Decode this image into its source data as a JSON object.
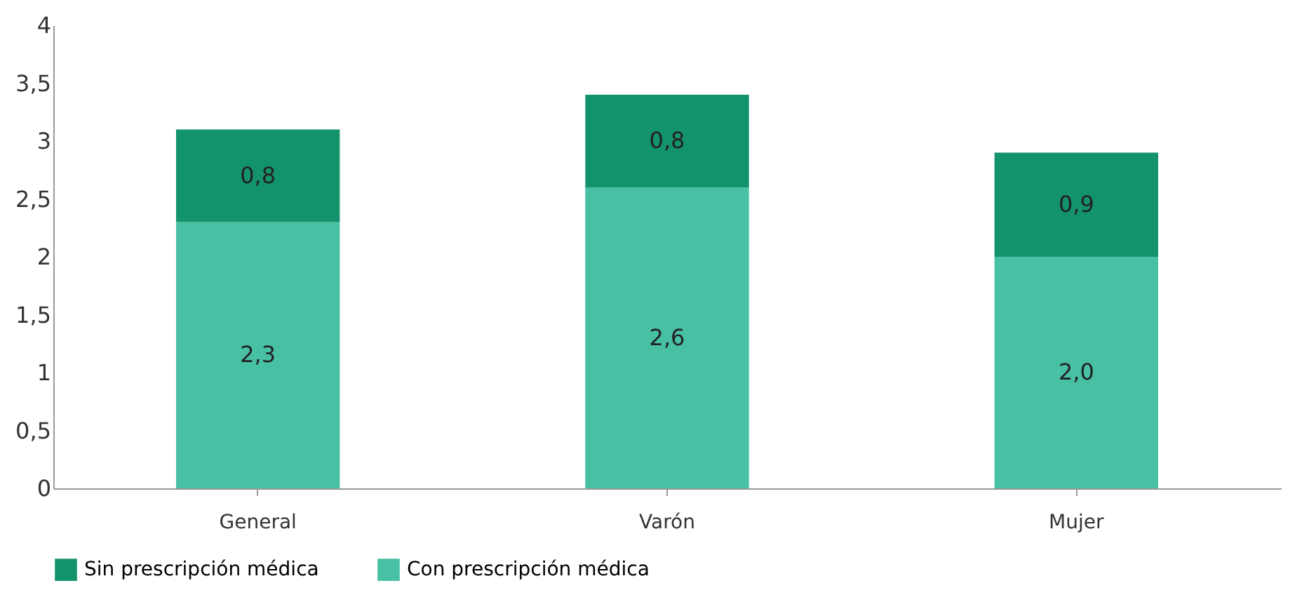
{
  "chart_data": {
    "type": "bar",
    "stacked": true,
    "categories": [
      "General",
      "Varón",
      "Mujer"
    ],
    "series": [
      {
        "name": "Con prescripción médica",
        "color": "#48c0a4",
        "values": [
          2.3,
          2.6,
          2.0
        ],
        "value_labels": [
          "2,3",
          "2,6",
          "2,0"
        ]
      },
      {
        "name": "Sin prescripción médica",
        "color": "#13936b",
        "values": [
          0.8,
          0.8,
          0.9
        ],
        "value_labels": [
          "0,8",
          "0,8",
          "0,9"
        ]
      }
    ],
    "ylim": [
      0,
      4
    ],
    "yticks": [
      0,
      {
        "value": 0.5,
        "label": "0,5"
      },
      1,
      {
        "value": 1.5,
        "label": "1,5"
      },
      2,
      {
        "value": 2.5,
        "label": "2,5"
      },
      3,
      {
        "value": 3.5,
        "label": "3,5"
      },
      4
    ],
    "grid": false,
    "legend": "bottom"
  }
}
